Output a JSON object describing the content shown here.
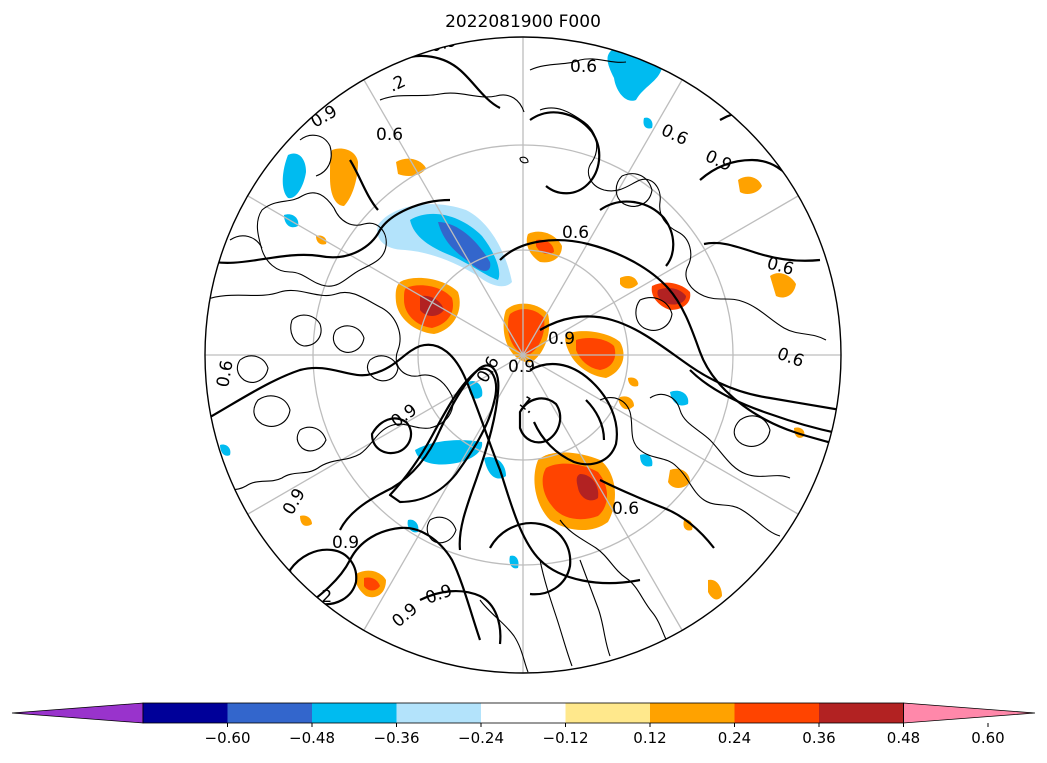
{
  "title": "2022081900 F000",
  "map": {
    "projection": "north-polar-stereographic",
    "contour_labels": [
      "0.9",
      "0.6",
      ".2",
      "0.9",
      "0.6",
      "0.9",
      "0.6",
      "0.6",
      "0.6",
      "0.6",
      "0.9",
      "0.9",
      "0.6",
      "0.9",
      "1.",
      "0.9",
      "0.6",
      "0.9",
      "0.6",
      ".2",
      "0.9",
      "0.9"
    ]
  },
  "colorbar": {
    "extend": "both",
    "ticks": [
      "−0.60",
      "−0.48",
      "−0.36",
      "−0.24",
      "−0.12",
      "0.12",
      "0.24",
      "0.36",
      "0.48",
      "0.60"
    ],
    "colors": [
      "#9933cc",
      "#000099",
      "#3366cc",
      "#00bbf0",
      "#b3e3fb",
      "#ffffff",
      "#ffe88c",
      "#ffa200",
      "#ff4400",
      "#b22222",
      "#ff88aa"
    ]
  }
}
